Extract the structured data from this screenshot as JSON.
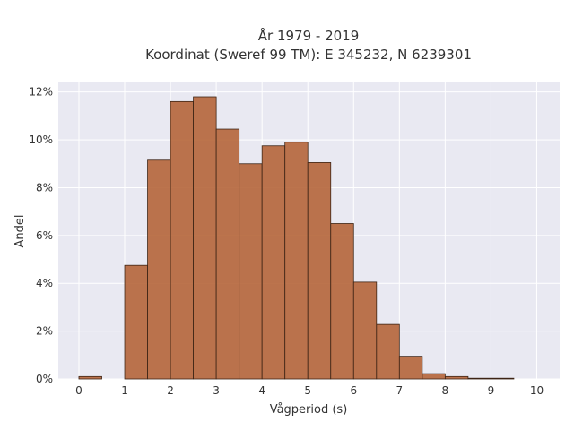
{
  "chart_data": {
    "type": "bar",
    "title_line1": "År 1979 - 2019",
    "title_line2": "Koordinat (Sweref 99 TM): E 345232, N 6239301",
    "xlabel": "Vågperiod (s)",
    "ylabel": "Andel",
    "bin_width": 0.5,
    "bins_start": [
      0,
      0.5,
      1,
      1.5,
      2,
      2.5,
      3,
      3.5,
      4,
      4.5,
      5,
      5.5,
      6,
      6.5,
      7,
      7.5,
      8,
      8.5,
      9,
      9.5
    ],
    "values": [
      0.1,
      0.0,
      4.75,
      9.15,
      11.6,
      11.8,
      10.45,
      9.0,
      9.75,
      9.9,
      9.05,
      6.5,
      4.05,
      2.28,
      0.95,
      0.22,
      0.1,
      0.03,
      0.03,
      0.0
    ],
    "xlim": [
      -0.45,
      10.5
    ],
    "ylim": [
      0,
      12.4
    ],
    "x_ticks": [
      "0",
      "1",
      "2",
      "3",
      "4",
      "5",
      "6",
      "7",
      "8",
      "9",
      "10"
    ],
    "y_ticks": [
      "0%",
      "2%",
      "4%",
      "6%",
      "8%",
      "10%",
      "12%"
    ],
    "grid": true,
    "colors": {
      "bar_fill": "#b5653a",
      "bar_edge": "#3d2415",
      "plot_bg": "#e9e9f2",
      "grid": "#ffffff"
    }
  }
}
